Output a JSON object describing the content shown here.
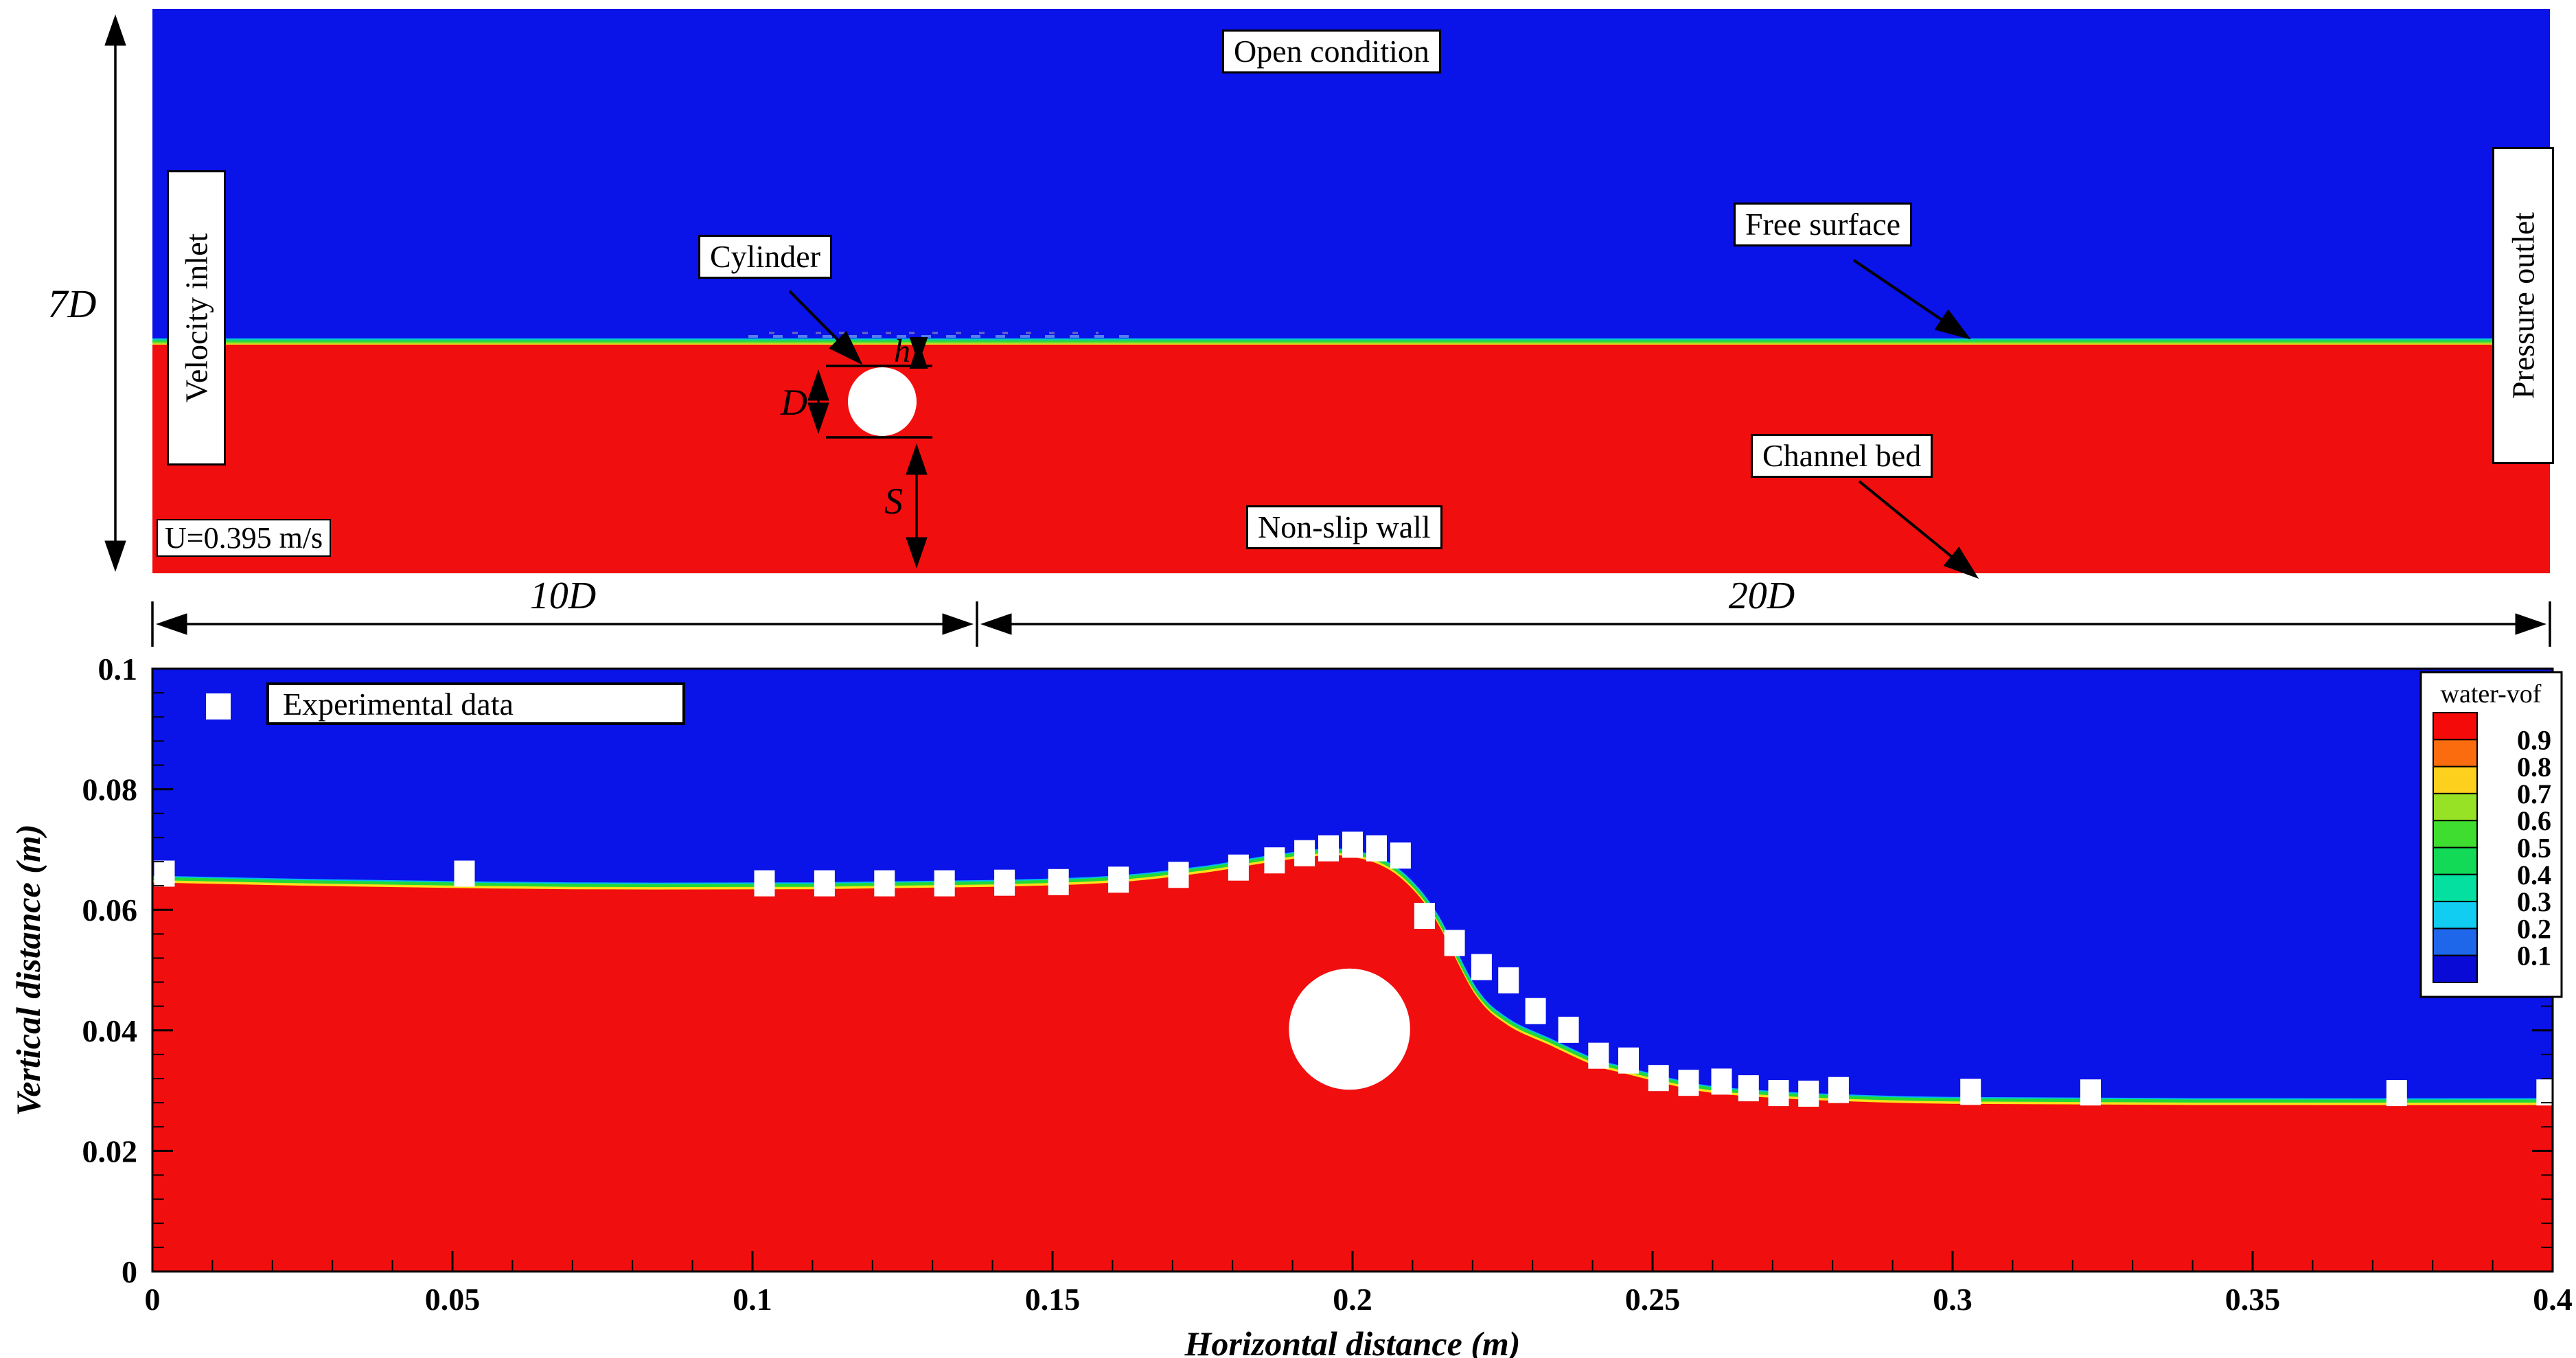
{
  "colors": {
    "air_blue": "#0a13e8",
    "water_red": "#f10e0e",
    "surface_cyan": "#00ccff",
    "surface_green": "#22d838",
    "surface_yellow": "#ffe01a",
    "marker_white": "#ffffff",
    "frame_black": "#000000"
  },
  "top_panel": {
    "labels": {
      "open_condition": "Open condition",
      "velocity_inlet": "Velocity inlet",
      "pressure_outlet": "Pressure outlet",
      "free_surface": "Free surface",
      "channel_bed": "Channel bed",
      "non_slip_wall": "Non-slip wall",
      "cylinder": "Cylinder",
      "inlet_velocity": "U=0.395 m/s"
    },
    "dims": {
      "height": "7D",
      "upstream": "10D",
      "downstream": "20D",
      "diameter": "D",
      "gap": "S",
      "clearance": "h"
    }
  },
  "chart_data": {
    "type": "area",
    "xlabel": "Horizontal distance (m)",
    "ylabel": "Vertical distance (m)",
    "xlim": [
      0,
      0.4
    ],
    "ylim": [
      0,
      0.1
    ],
    "x_tick_values": [
      0,
      0.05,
      0.1,
      0.15,
      0.2,
      0.25,
      0.3,
      0.35,
      0.4
    ],
    "x_tick_labels": [
      "0",
      "0.05",
      "0.1",
      "0.15",
      "0.2",
      "0.25",
      "0.3",
      "0.35",
      "0.4"
    ],
    "x_minor_step": 0.01,
    "y_tick_values": [
      0,
      0.02,
      0.04,
      0.06,
      0.08,
      0.1
    ],
    "y_tick_labels": [
      "0",
      "0.02",
      "0.04",
      "0.06",
      "0.08",
      "0.1"
    ],
    "y_minor_step": 0.004,
    "grid": false,
    "legend": {
      "label": "Experimental data",
      "position": "top-left"
    },
    "cylinder": {
      "x": 0.1995,
      "y": 0.0402,
      "diameter": 0.0202
    },
    "series": [
      {
        "name": "Simulated free surface (water-vof contour)",
        "type": "line",
        "points": [
          [
            0,
            0.0652
          ],
          [
            0.03,
            0.0646
          ],
          [
            0.07,
            0.0641
          ],
          [
            0.11,
            0.0641
          ],
          [
            0.14,
            0.0645
          ],
          [
            0.16,
            0.0652
          ],
          [
            0.175,
            0.0668
          ],
          [
            0.185,
            0.0684
          ],
          [
            0.193,
            0.0695
          ],
          [
            0.198,
            0.0697
          ],
          [
            0.204,
            0.0684
          ],
          [
            0.209,
            0.0652
          ],
          [
            0.214,
            0.059
          ],
          [
            0.2206,
            0.0466
          ],
          [
            0.226,
            0.0415
          ],
          [
            0.233,
            0.0382
          ],
          [
            0.24,
            0.035
          ],
          [
            0.2455,
            0.0335
          ],
          [
            0.258,
            0.0306
          ],
          [
            0.27,
            0.0295
          ],
          [
            0.283,
            0.0289
          ],
          [
            0.3,
            0.0285
          ],
          [
            0.34,
            0.0283
          ],
          [
            0.4,
            0.0283
          ]
        ]
      },
      {
        "name": "Experimental data",
        "type": "scatter",
        "marker": "square",
        "points": [
          [
            0.002,
            0.066
          ],
          [
            0.052,
            0.066
          ],
          [
            0.102,
            0.0644
          ],
          [
            0.112,
            0.0644
          ],
          [
            0.122,
            0.0644
          ],
          [
            0.132,
            0.0644
          ],
          [
            0.142,
            0.0645
          ],
          [
            0.151,
            0.0646
          ],
          [
            0.161,
            0.065
          ],
          [
            0.171,
            0.0658
          ],
          [
            0.181,
            0.067
          ],
          [
            0.187,
            0.0682
          ],
          [
            0.192,
            0.0694
          ],
          [
            0.196,
            0.0702
          ],
          [
            0.2,
            0.0708
          ],
          [
            0.204,
            0.0702
          ],
          [
            0.208,
            0.069
          ],
          [
            0.212,
            0.059
          ],
          [
            0.217,
            0.0545
          ],
          [
            0.2215,
            0.0505
          ],
          [
            0.226,
            0.0483
          ],
          [
            0.2305,
            0.0432
          ],
          [
            0.236,
            0.0401
          ],
          [
            0.241,
            0.0358
          ],
          [
            0.246,
            0.035
          ],
          [
            0.251,
            0.0321
          ],
          [
            0.256,
            0.0313
          ],
          [
            0.2615,
            0.0315
          ],
          [
            0.266,
            0.0304
          ],
          [
            0.271,
            0.0296
          ],
          [
            0.276,
            0.0295
          ],
          [
            0.281,
            0.0301
          ],
          [
            0.303,
            0.0298
          ],
          [
            0.323,
            0.0297
          ],
          [
            0.374,
            0.0296
          ],
          [
            0.399,
            0.0297
          ]
        ]
      }
    ],
    "colorbar": {
      "title": "water-vof",
      "tick_labels": [
        "0.9",
        "0.8",
        "0.7",
        "0.6",
        "0.5",
        "0.4",
        "0.3",
        "0.2",
        "0.1"
      ],
      "colors": [
        "#f50a0a",
        "#fb6c0e",
        "#fed01e",
        "#97e225",
        "#3fdd30",
        "#12da57",
        "#04e0a0",
        "#12cdf2",
        "#1e66ea",
        "#0a0ad6"
      ]
    }
  }
}
